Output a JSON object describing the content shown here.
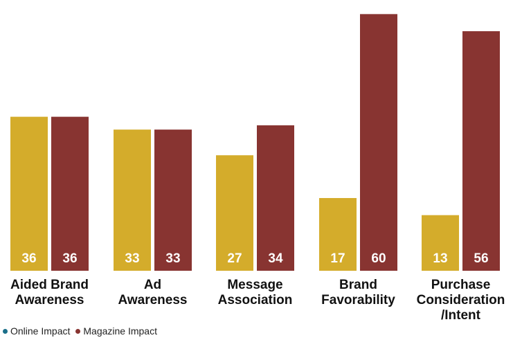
{
  "chart_data": {
    "type": "bar",
    "categories": [
      [
        "Aided Brand",
        "Awareness"
      ],
      [
        "Ad",
        "Awareness"
      ],
      [
        "Message",
        "Association"
      ],
      [
        "Brand",
        "Favorability"
      ],
      [
        "Purchase",
        "Consideration",
        "/Intent"
      ]
    ],
    "series": [
      {
        "name": "Online Impact",
        "values": [
          36,
          33,
          27,
          17,
          13
        ],
        "color": "#d4ac2b",
        "legend_color": "#1b6f8a"
      },
      {
        "name": "Magazine Impact",
        "values": [
          36,
          33,
          34,
          60,
          56
        ],
        "color": "#883431",
        "legend_color": "#883431"
      }
    ],
    "title": "",
    "xlabel": "",
    "ylabel": "",
    "ylim": [
      0,
      62
    ],
    "grid": false,
    "legend_position": "bottom-left"
  }
}
